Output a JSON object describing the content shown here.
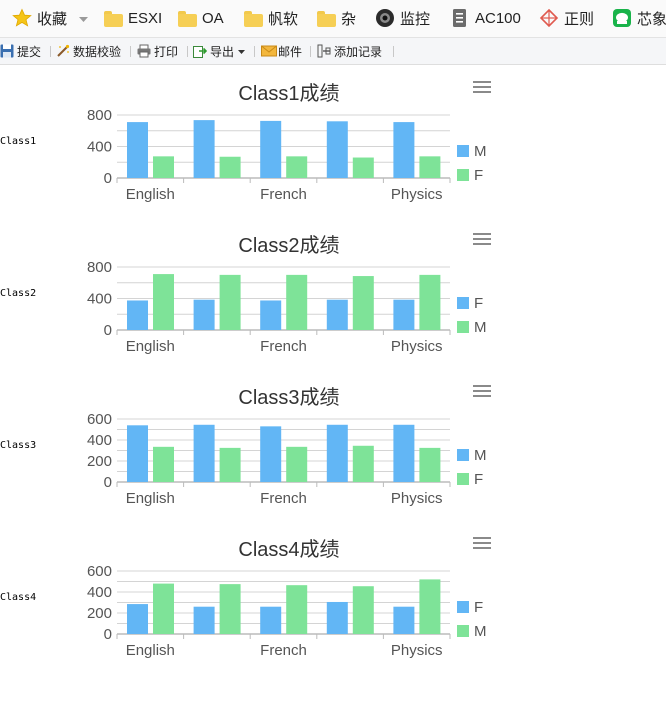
{
  "bookmarks": [
    {
      "label": "收藏",
      "icon": "star-icon"
    },
    {
      "label": "ESXI",
      "icon": "folder-icon"
    },
    {
      "label": "OA",
      "icon": "folder-icon"
    },
    {
      "label": "帆软",
      "icon": "folder-icon"
    },
    {
      "label": "杂",
      "icon": "folder-icon"
    },
    {
      "label": "监控",
      "icon": "camera-icon"
    },
    {
      "label": "AC100",
      "icon": "document-icon"
    },
    {
      "label": "正则",
      "icon": "regex-icon"
    },
    {
      "label": "芯象",
      "icon": "chat-icon"
    }
  ],
  "toolbar": {
    "submit": "提交",
    "validate": "数据校验",
    "print": "打印",
    "export": "导出",
    "mail": "邮件",
    "add_record": "添加记录"
  },
  "chart_data": [
    {
      "type": "bar",
      "title": "Class1成绩",
      "side_label": "Class1",
      "categories": [
        "English",
        "",
        "French",
        "",
        "Physics"
      ],
      "series": [
        {
          "name": "M",
          "color": "#62b6f5",
          "values": [
            710,
            735,
            725,
            720,
            710
          ]
        },
        {
          "name": "F",
          "color": "#7ee398",
          "values": [
            275,
            270,
            275,
            260,
            275
          ]
        }
      ],
      "legend_order": [
        "M",
        "F"
      ],
      "yticks": [
        0,
        400,
        800
      ],
      "ylim": [
        0,
        800
      ],
      "legend": "right"
    },
    {
      "type": "bar",
      "title": "Class2成绩",
      "side_label": "Class2",
      "categories": [
        "English",
        "",
        "French",
        "",
        "Physics"
      ],
      "series": [
        {
          "name": "F",
          "color": "#62b6f5",
          "values": [
            375,
            385,
            375,
            385,
            385
          ]
        },
        {
          "name": "M",
          "color": "#7ee398",
          "values": [
            710,
            700,
            700,
            685,
            700
          ]
        }
      ],
      "legend_order": [
        "F",
        "M"
      ],
      "yticks": [
        0,
        400,
        800
      ],
      "ylim": [
        0,
        800
      ],
      "legend": "right"
    },
    {
      "type": "bar",
      "title": "Class3成绩",
      "side_label": "Class3",
      "categories": [
        "English",
        "",
        "French",
        "",
        "Physics"
      ],
      "series": [
        {
          "name": "M",
          "color": "#62b6f5",
          "values": [
            540,
            545,
            530,
            545,
            545
          ]
        },
        {
          "name": "F",
          "color": "#7ee398",
          "values": [
            335,
            325,
            335,
            345,
            325
          ]
        }
      ],
      "legend_order": [
        "M",
        "F"
      ],
      "yticks": [
        0,
        200,
        400,
        600
      ],
      "ylim": [
        0,
        600
      ],
      "legend": "right"
    },
    {
      "type": "bar",
      "title": "Class4成绩",
      "side_label": "Class4",
      "categories": [
        "English",
        "",
        "French",
        "",
        "Physics"
      ],
      "series": [
        {
          "name": "F",
          "color": "#62b6f5",
          "values": [
            285,
            260,
            260,
            305,
            260
          ]
        },
        {
          "name": "M",
          "color": "#7ee398",
          "values": [
            480,
            475,
            465,
            455,
            520
          ]
        }
      ],
      "legend_order": [
        "F",
        "M"
      ],
      "yticks": [
        0,
        200,
        400,
        600
      ],
      "ylim": [
        0,
        600
      ],
      "legend": "right"
    }
  ]
}
